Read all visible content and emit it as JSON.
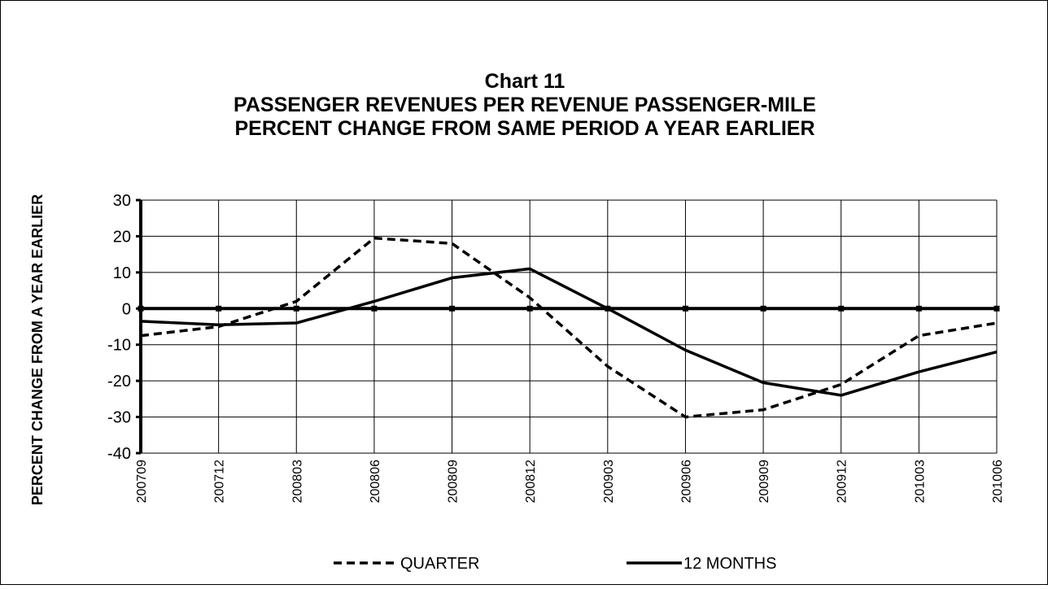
{
  "chart_data": {
    "type": "line",
    "title": [
      "Chart 11",
      "PASSENGER REVENUES PER REVENUE PASSENGER-MILE",
      "PERCENT CHANGE FROM SAME PERIOD A YEAR EARLIER"
    ],
    "y_label": "PERCENT CHANGE FROM A YEAR EARLIER",
    "categories": [
      "200709",
      "200712",
      "200803",
      "200806",
      "200809",
      "200812",
      "200903",
      "200906",
      "200909",
      "200912",
      "201003",
      "201006"
    ],
    "series": [
      {
        "name": "QUARTER",
        "color": "#000000",
        "style": "dashed",
        "values": [
          -7.5,
          -5,
          2,
          19.5,
          18,
          3,
          -16,
          -30,
          -28,
          -21,
          -7.5,
          -4
        ]
      },
      {
        "name": "12 MONTHS",
        "color": "#000000",
        "style": "solid",
        "values": [
          -3.5,
          -4.5,
          -4,
          2,
          8.5,
          11,
          0,
          -11.5,
          -20.5,
          -24,
          -17.5,
          -12
        ]
      }
    ],
    "ylim": [
      -40,
      30
    ],
    "yticks": [
      -40,
      -30,
      -20,
      -10,
      0,
      10,
      20,
      30
    ],
    "grid": true,
    "legend": "bottom"
  }
}
